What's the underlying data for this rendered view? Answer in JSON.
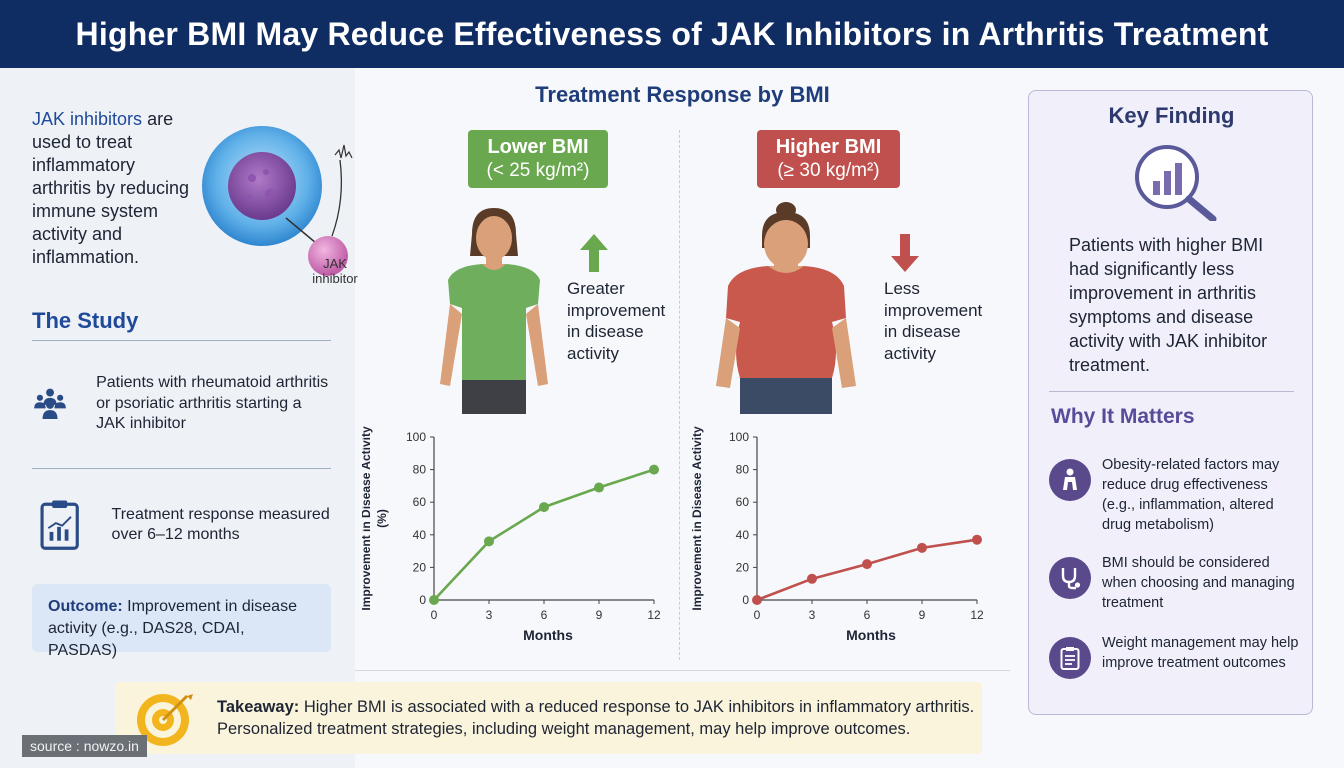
{
  "header": {
    "title": "Higher BMI May Reduce Effectiveness of JAK Inhibitors in Arthritis Treatment"
  },
  "intro": {
    "highlight": "JAK inhibitors",
    "rest": " are used to treat inflammatory arthritis by reducing immune system activity and inflammation.",
    "cell_label": "JAK inhibitor"
  },
  "study": {
    "title": "The Study",
    "items": [
      {
        "icon": "people-group-icon",
        "text": "Patients with rheumatoid arthritis or psoriatic arthritis starting a JAK inhibitor"
      },
      {
        "icon": "clipboard-chart-icon",
        "text": "Treatment response measured over 6–12 months"
      }
    ],
    "outcome_label": "Outcome:",
    "outcome_text": " Improvement in disease activity (e.g., DAS28, CDAI, PASDAS)"
  },
  "middle": {
    "title": "Treatment Response by BMI",
    "lower": {
      "badge_line1": "Lower BMI",
      "badge_line2": "(< 25 kg/m²)",
      "desc": "Greater improvement in disease activity",
      "color": "#6aa84f"
    },
    "higher": {
      "badge_line1": "Higher BMI",
      "badge_line2": "(≥ 30 kg/m²)",
      "desc": "Less improvement in disease activity",
      "color": "#c0504d"
    }
  },
  "chart_data": [
    {
      "type": "line",
      "x": [
        0,
        3,
        6,
        9,
        12
      ],
      "series": [
        {
          "values": [
            0,
            36,
            57,
            69,
            80
          ],
          "color": "#6aa84f"
        }
      ],
      "xlabel": "Months",
      "ylabel": "Improvement in Disease Activity (%)",
      "ylim": [
        0,
        100
      ],
      "yticks": [
        0,
        20,
        40,
        60,
        80,
        100
      ],
      "grid": false
    },
    {
      "type": "line",
      "x": [
        0,
        3,
        6,
        9,
        12
      ],
      "series": [
        {
          "values": [
            0,
            13,
            22,
            32,
            37
          ],
          "color": "#c0504d"
        }
      ],
      "xlabel": "Months",
      "ylabel": "Improvement in Disease Activity",
      "ylim": [
        0,
        100
      ],
      "yticks": [
        0,
        20,
        40,
        60,
        80,
        100
      ],
      "grid": false
    }
  ],
  "key_finding": {
    "title": "Key Finding",
    "icon": "magnifier-chart-icon",
    "text": "Patients with higher BMI had significantly less improvement in arthritis symptoms and disease activity with JAK inhibitor treatment."
  },
  "why_it_matters": {
    "title": "Why It Matters",
    "items": [
      {
        "icon": "person-icon",
        "text": "Obesity-related factors may reduce drug effectiveness (e.g., inflammation, altered drug metabolism)"
      },
      {
        "icon": "stethoscope-icon",
        "text": "BMI should be considered when choosing and managing treatment"
      },
      {
        "icon": "checklist-icon",
        "text": "Weight management may help improve treatment outcomes"
      }
    ]
  },
  "takeaway": {
    "label": "Takeaway:",
    "text": " Higher BMI is associated with a reduced response to JAK inhibitors in inflammatory arthritis. Personalized treatment strategies, including weight management, may help improve outcomes."
  },
  "source": "source : nowzo.in"
}
